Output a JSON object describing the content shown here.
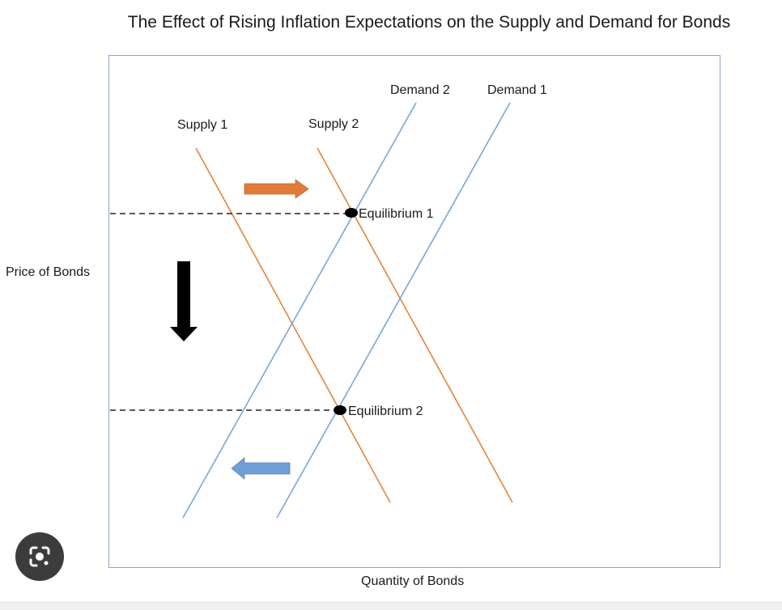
{
  "title": "The Effect of Rising Inflation Expectations on the Supply and Demand for Bonds",
  "axes": {
    "y_label": "Price of Bonds",
    "x_label": "Quantity of Bonds"
  },
  "curves": {
    "supply_1": "Supply 1",
    "supply_2": "Supply 2",
    "demand_1": "Demand 1",
    "demand_2": "Demand 2"
  },
  "points": {
    "equilibrium_1": "Equilibrium 1",
    "equilibrium_2": "Equilibrium 2"
  },
  "colors": {
    "supply": "#e8823a",
    "demand": "#7aa6d6",
    "arrow_right": "#e07b39",
    "arrow_left": "#6f9fd4",
    "arrow_down": "#000000",
    "frame": "#8fa4c8"
  },
  "icons": {
    "lens": "camera-lens-icon"
  }
}
